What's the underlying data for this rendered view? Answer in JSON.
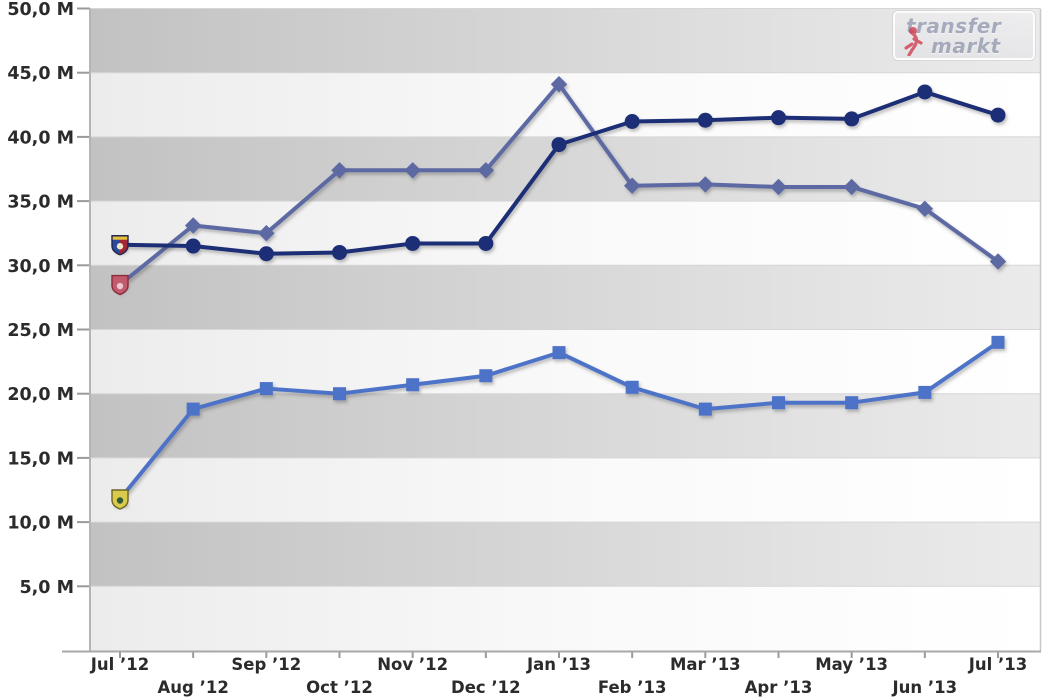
{
  "logo": {
    "line1": "transfer",
    "line2": "markt"
  },
  "chart_data": {
    "type": "line",
    "title": "",
    "xlabel": "",
    "ylabel": "",
    "ylim": [
      0,
      50
    ],
    "grid": "horizontal bands every 5M, alternating gray/white with left-to-right fade",
    "legend": "none — small club crest icons mark the first data point of each series",
    "unit": "M (million €)",
    "x": [
      "Jul ’12",
      "Aug ’12",
      "Sep ’12",
      "Oct ’12",
      "Nov ’12",
      "Dec ’12",
      "Jan ’13",
      "Feb ’13",
      "Mar ’13",
      "Apr ’13",
      "May ’13",
      "Jun ’13",
      "Jul ’13"
    ],
    "y_ticks": {
      "values": [
        50,
        45,
        40,
        35,
        30,
        25,
        20,
        15,
        10,
        5
      ],
      "labels": [
        "50,0 M",
        "45,0 M",
        "40,0 M",
        "35,0 M",
        "30,0 M",
        "25,0 M",
        "20,0 M",
        "15,0 M",
        "10,0 M",
        "5,0 M"
      ]
    },
    "series": [
      {
        "name": "slate-blue-diamonds",
        "marker": "diamond",
        "color": "#5d69a3",
        "values": [
          28.5,
          33.1,
          32.5,
          37.4,
          37.4,
          37.4,
          44.1,
          36.2,
          36.3,
          36.1,
          36.1,
          34.4,
          30.3
        ],
        "crest": {
          "outline": "#8c2a3c",
          "top": "#c05a6c",
          "left": "#c05a6c",
          "right": "#c05a6c",
          "inner": "#ecc6cd"
        }
      },
      {
        "name": "medium-blue-squares",
        "marker": "square",
        "color": "#4e73c8",
        "values": [
          11.8,
          18.8,
          20.4,
          20.0,
          20.7,
          21.4,
          23.2,
          20.5,
          18.8,
          19.3,
          19.3,
          20.1,
          24.0
        ],
        "crest": {
          "outline": "#6b6426",
          "top": "#d9ca4e",
          "left": "#d9ca4e",
          "right": "#d9ca4e",
          "inner": "#2e5b36"
        }
      },
      {
        "name": "dark-navy-circles",
        "marker": "circle",
        "color": "#1c2e76",
        "values": [
          31.6,
          31.5,
          30.9,
          31.0,
          31.7,
          31.7,
          39.4,
          41.2,
          41.3,
          41.5,
          41.4,
          43.5,
          41.7
        ],
        "crest": {
          "outline": "#23274d",
          "top": "#e2bf3c",
          "left": "#2a4a9d",
          "right": "#a32638",
          "inner": "#f0e6c0"
        }
      }
    ]
  }
}
